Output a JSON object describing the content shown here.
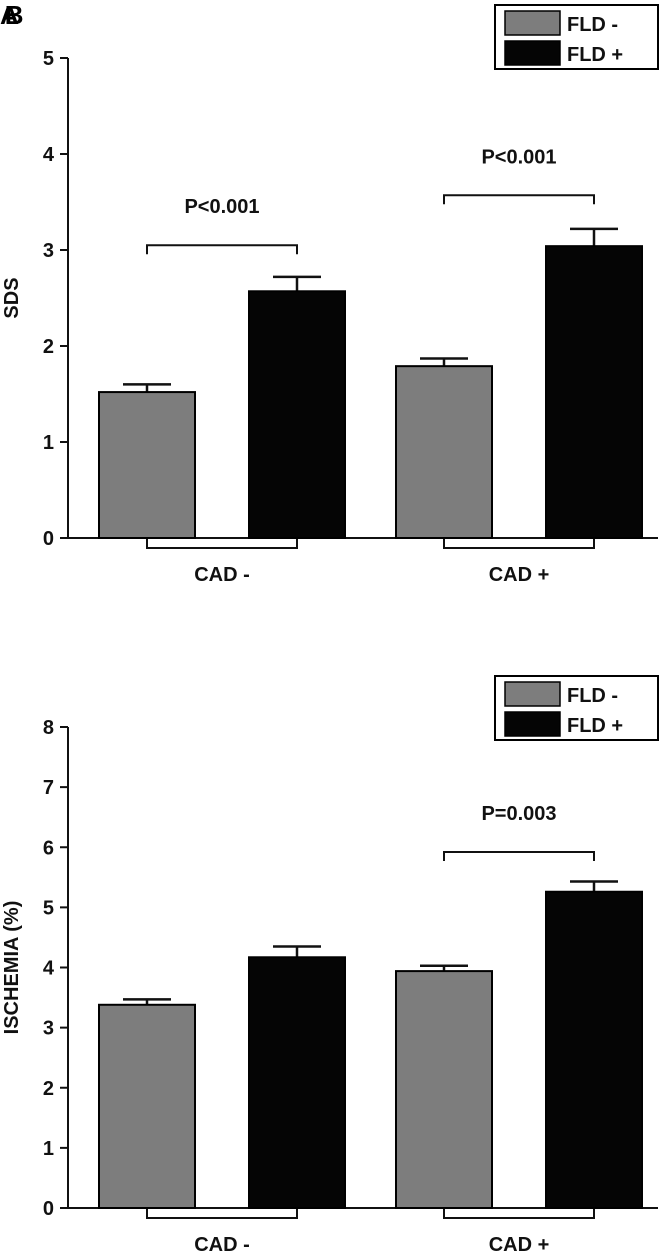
{
  "panel_labels": [
    "A",
    "B"
  ],
  "colors": {
    "fld_minus": "#7d7d7d",
    "fld_plus": "#050505",
    "axis": "#111111"
  },
  "chart_data": [
    {
      "type": "bar",
      "title": "",
      "xlabel": "",
      "ylabel": "SDS",
      "ylim": [
        0,
        5
      ],
      "yticks": [
        "0",
        "1",
        "2",
        "3",
        "4",
        "5"
      ],
      "categories": [
        "CAD -",
        "CAD +"
      ],
      "legend": {
        "position": "top-right",
        "entries": [
          "FLD -",
          "FLD +"
        ]
      },
      "series": [
        {
          "name": "FLD -",
          "values": [
            1.52,
            1.79
          ],
          "errors": [
            0.08,
            0.08
          ]
        },
        {
          "name": "FLD +",
          "values": [
            2.57,
            3.04
          ],
          "errors": [
            0.15,
            0.18
          ]
        }
      ],
      "annotations": [
        {
          "text": "P<0.001",
          "category": 0,
          "level": 3.05
        },
        {
          "text": "P<0.001",
          "category": 1,
          "level": 3.57
        }
      ]
    },
    {
      "type": "bar",
      "title": "",
      "xlabel": "",
      "ylabel": "ISCHEMIA (%)",
      "ylim": [
        0,
        8
      ],
      "yticks": [
        "0",
        "1",
        "2",
        "3",
        "4",
        "5",
        "6",
        "7",
        "8"
      ],
      "categories": [
        "CAD -",
        "CAD +"
      ],
      "legend": {
        "position": "top-right",
        "entries": [
          "FLD -",
          "FLD +"
        ]
      },
      "series": [
        {
          "name": "FLD -",
          "values": [
            3.38,
            3.94
          ],
          "errors": [
            0.09,
            0.09
          ]
        },
        {
          "name": "FLD +",
          "values": [
            4.17,
            5.26
          ],
          "errors": [
            0.18,
            0.17
          ]
        }
      ],
      "annotations": [
        {
          "text": "P=0.003",
          "category": 1,
          "level": 5.92
        }
      ]
    }
  ]
}
